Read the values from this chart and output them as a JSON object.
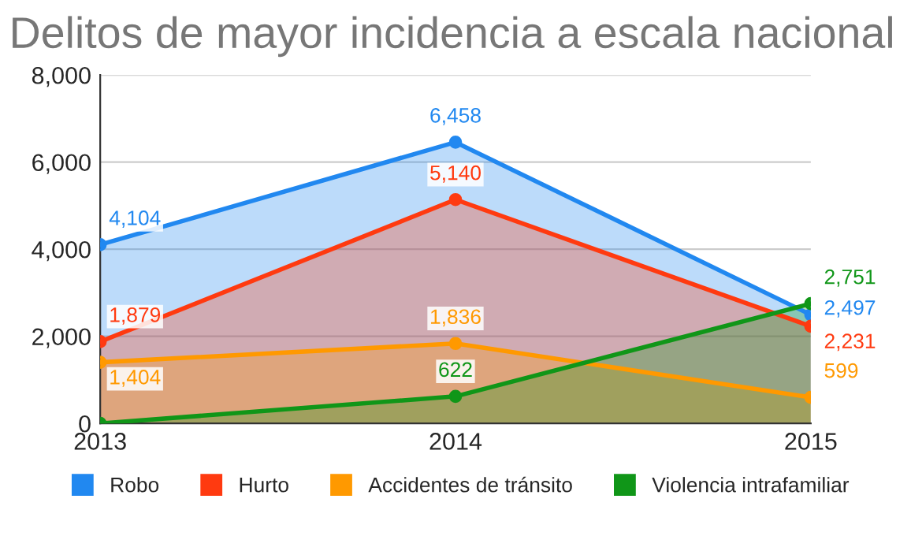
{
  "chart_data": {
    "type": "area",
    "title": "Delitos de mayor incidencia a escala nacional",
    "categories": [
      "2013",
      "2014",
      "2015"
    ],
    "series": [
      {
        "name": "Robo",
        "color": "#2188f0",
        "values": [
          4104,
          6458,
          2497
        ],
        "value_labels": [
          "4,104",
          "6,458",
          "2,497"
        ]
      },
      {
        "name": "Hurto",
        "color": "#ff3a10",
        "values": [
          1879,
          5140,
          2231
        ],
        "value_labels": [
          "1,879",
          "5,140",
          "2,231"
        ]
      },
      {
        "name": "Accidentes de tránsito",
        "color": "#ff9900",
        "values": [
          1404,
          1836,
          599
        ],
        "value_labels": [
          "1,404",
          "1,836",
          "599"
        ]
      },
      {
        "name": "Violencia intrafamiliar",
        "color": "#109618",
        "values": [
          0,
          622,
          2751
        ],
        "value_labels": [
          null,
          "622",
          "2,751"
        ]
      }
    ],
    "ylim": [
      0,
      8000
    ],
    "yticks": [
      {
        "value": 0,
        "label": "0"
      },
      {
        "value": 2000,
        "label": "2,000"
      },
      {
        "value": 4000,
        "label": "4,000"
      },
      {
        "value": 6000,
        "label": "6,000"
      },
      {
        "value": 8000,
        "label": "8,000"
      }
    ],
    "grid": "y",
    "legend": "bottom",
    "marker": "circle"
  }
}
